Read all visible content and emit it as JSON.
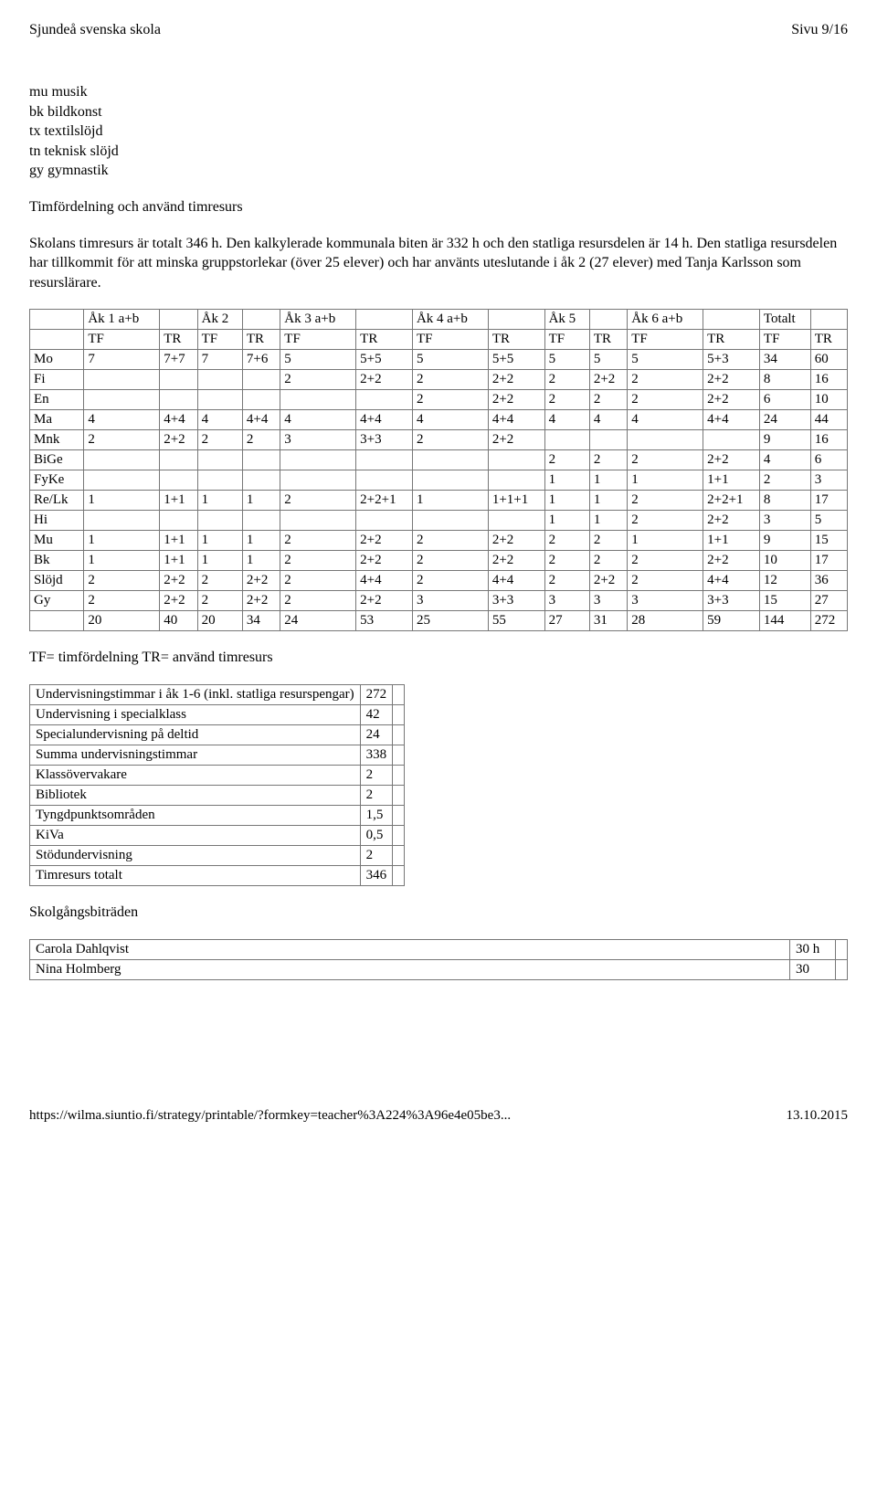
{
  "header": {
    "left": "Sjundeå svenska skola",
    "right": "Sivu 9/16"
  },
  "abbrev_list": [
    "mu musik",
    "bk bildkonst",
    "tx textilslöjd",
    "tn teknisk slöjd",
    "gy gymnastik"
  ],
  "subheading": "Timfördelning och använd timresurs",
  "intro_paragraph": "Skolans timresurs är totalt 346 h. Den kalkylerade kommunala biten är 332 h och den statliga resursdelen är 14 h. Den statliga resursdelen har tillkommit för att minska gruppstorlekar (över 25 elever) och har använts uteslutande i åk 2 (27 elever) med Tanja Karlsson som resurslärare.",
  "main_table": {
    "group_headers": [
      "",
      "Åk 1 a+b",
      "Åk 2",
      "Åk 3 a+b",
      "Åk 4 a+b",
      "Åk 5",
      "Åk 6 a+b",
      "Totalt"
    ],
    "sub_headers": [
      "",
      "TF",
      "TR",
      "TF",
      "TR",
      "TF",
      "TR",
      "TF",
      "TR",
      "TF",
      "TR",
      "TF",
      "TR",
      "TF",
      "TR"
    ],
    "rows": [
      [
        "Mo",
        "7",
        "7+7",
        "7",
        "7+6",
        "5",
        "5+5",
        "5",
        "5+5",
        "5",
        "5",
        "5",
        "5+3",
        "34",
        "60"
      ],
      [
        "Fi",
        "",
        "",
        "",
        "",
        "2",
        "2+2",
        "2",
        "2+2",
        "2",
        "2+2",
        "2",
        "2+2",
        "8",
        "16"
      ],
      [
        "En",
        "",
        "",
        "",
        "",
        "",
        "",
        "2",
        "2+2",
        "2",
        "2",
        "2",
        "2+2",
        "6",
        "10"
      ],
      [
        "Ma",
        "4",
        "4+4",
        "4",
        "4+4",
        "4",
        "4+4",
        "4",
        "4+4",
        "4",
        "4",
        "4",
        "4+4",
        "24",
        "44"
      ],
      [
        "Mnk",
        "2",
        "2+2",
        "2",
        "2",
        "3",
        "3+3",
        "2",
        "2+2",
        "",
        "",
        "",
        "",
        "9",
        "16"
      ],
      [
        "BiGe",
        "",
        "",
        "",
        "",
        "",
        "",
        "",
        "",
        "2",
        "2",
        "2",
        "2+2",
        "4",
        "6"
      ],
      [
        "FyKe",
        "",
        "",
        "",
        "",
        "",
        "",
        "",
        "",
        "1",
        "1",
        "1",
        "1+1",
        "2",
        "3"
      ],
      [
        "Re/Lk",
        "1",
        "1+1",
        "1",
        "1",
        "2",
        "2+2+1",
        "1",
        "1+1+1",
        "1",
        "1",
        "2",
        "2+2+1",
        "8",
        "17"
      ],
      [
        "Hi",
        "",
        "",
        "",
        "",
        "",
        "",
        "",
        "",
        "1",
        "1",
        "2",
        "2+2",
        "3",
        "5"
      ],
      [
        "Mu",
        "1",
        "1+1",
        "1",
        "1",
        "2",
        "2+2",
        "2",
        "2+2",
        "2",
        "2",
        "1",
        "1+1",
        "9",
        "15"
      ],
      [
        "Bk",
        "1",
        "1+1",
        "1",
        "1",
        "2",
        "2+2",
        "2",
        "2+2",
        "2",
        "2",
        "2",
        "2+2",
        "10",
        "17"
      ],
      [
        "Slöjd",
        "2",
        "2+2",
        "2",
        "2+2",
        "2",
        "4+4",
        "2",
        "4+4",
        "2",
        "2+2",
        "2",
        "4+4",
        "12",
        "36"
      ],
      [
        "Gy",
        "2",
        "2+2",
        "2",
        "2+2",
        "2",
        "2+2",
        "3",
        "3+3",
        "3",
        "3",
        "3",
        "3+3",
        "15",
        "27"
      ],
      [
        "",
        "20",
        "40",
        "20",
        "34",
        "24",
        "53",
        "25",
        "55",
        "27",
        "31",
        "28",
        "59",
        "144",
        "272"
      ]
    ]
  },
  "legend": "TF= timfördelning TR= använd timresurs",
  "summary_table": {
    "rows": [
      [
        "Undervisningstimmar i åk 1-6 (inkl. statliga resurspengar)",
        "272"
      ],
      [
        "Undervisning i specialklass",
        "42"
      ],
      [
        "Specialundervisning på deltid",
        "24"
      ],
      [
        "Summa undervisningstimmar",
        "338"
      ],
      [
        "Klassövervakare",
        "2"
      ],
      [
        "Bibliotek",
        "2"
      ],
      [
        "Tyngdpunktsområden",
        "1,5"
      ],
      [
        "KiVa",
        "0,5"
      ],
      [
        "Stödundervisning",
        "2"
      ],
      [
        "Timresurs totalt",
        "346"
      ]
    ]
  },
  "assistants_heading": "Skolgångsbiträden",
  "assistants_table": {
    "rows": [
      [
        "Carola Dahlqvist",
        "30 h"
      ],
      [
        "Nina Holmberg",
        "30"
      ]
    ]
  },
  "footer": {
    "left": "https://wilma.siuntio.fi/strategy/printable/?formkey=teacher%3A224%3A96e4e05be3...",
    "right": "13.10.2015"
  }
}
